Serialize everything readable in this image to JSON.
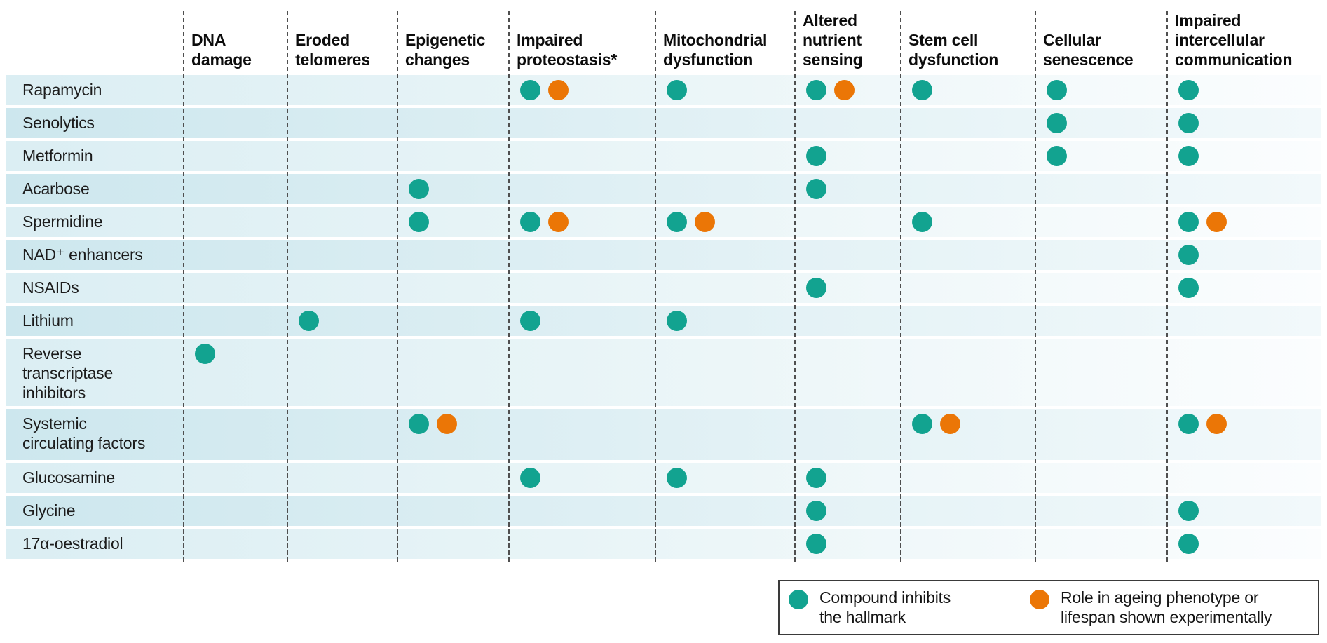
{
  "chart_data": {
    "type": "table",
    "description": "Matrix of candidate anti-ageing compounds versus hallmarks of ageing",
    "columns": [
      "DNA\ndamage",
      "Eroded\ntelomeres",
      "Epigenetic\nchanges",
      "Impaired\nproteostasis*",
      "Mitochondrial\ndysfunction",
      "Altered\nnutrient\nsensing",
      "Stem cell\ndysfunction",
      "Cellular\nsenescence",
      "Impaired\nintercellular\ncommunication"
    ],
    "rows": [
      {
        "label": "Rapamycin",
        "cells": [
          "",
          "",
          "",
          "to",
          "t",
          "to",
          "t",
          "t",
          "t"
        ]
      },
      {
        "label": "Senolytics",
        "cells": [
          "",
          "",
          "",
          "",
          "",
          "",
          "",
          "t",
          "t"
        ]
      },
      {
        "label": "Metformin",
        "cells": [
          "",
          "",
          "",
          "",
          "",
          "t",
          "",
          "t",
          "t"
        ]
      },
      {
        "label": "Acarbose",
        "cells": [
          "",
          "",
          "t",
          "",
          "",
          "t",
          "",
          "",
          ""
        ]
      },
      {
        "label": "Spermidine",
        "cells": [
          "",
          "",
          "t",
          "to",
          "to",
          "",
          "t",
          "",
          "to"
        ]
      },
      {
        "label": "NAD⁺ enhancers",
        "cells": [
          "",
          "",
          "",
          "",
          "",
          "",
          "",
          "",
          "t"
        ]
      },
      {
        "label": "NSAIDs",
        "cells": [
          "",
          "",
          "",
          "",
          "",
          "t",
          "",
          "",
          "t"
        ]
      },
      {
        "label": "Lithium",
        "cells": [
          "",
          "t",
          "",
          "t",
          "t",
          "",
          "",
          "",
          ""
        ]
      },
      {
        "label": "Reverse\ntranscriptase\ninhibitors",
        "cells": [
          "t",
          "",
          "",
          "",
          "",
          "",
          "",
          "",
          ""
        ]
      },
      {
        "label": "Systemic\ncirculating factors",
        "cells": [
          "",
          "",
          "to",
          "",
          "",
          "",
          "to",
          "",
          "to"
        ]
      },
      {
        "label": "Glucosamine",
        "cells": [
          "",
          "",
          "",
          "t",
          "t",
          "t",
          "",
          "",
          ""
        ]
      },
      {
        "label": "Glycine",
        "cells": [
          "",
          "",
          "",
          "",
          "",
          "t",
          "",
          "",
          "t"
        ]
      },
      {
        "label": "17α-oestradiol",
        "cells": [
          "",
          "",
          "",
          "",
          "",
          "t",
          "",
          "",
          "t"
        ]
      }
    ],
    "cell_codes": {
      "t": "teal dot — compound inhibits the hallmark",
      "to": "teal dot + orange dot — inhibits the hallmark and role in ageing phenotype or lifespan shown experimentally"
    },
    "legend_position": "bottom-right"
  },
  "legend": {
    "teal_label": "Compound inhibits\nthe hallmark",
    "orange_label": "Role in ageing phenotype or\nlifespan shown experimentally"
  },
  "colors": {
    "teal": "#12A390",
    "orange": "#EB7606",
    "row_light": "#dbeef3",
    "row_dark": "#cde7ee"
  }
}
